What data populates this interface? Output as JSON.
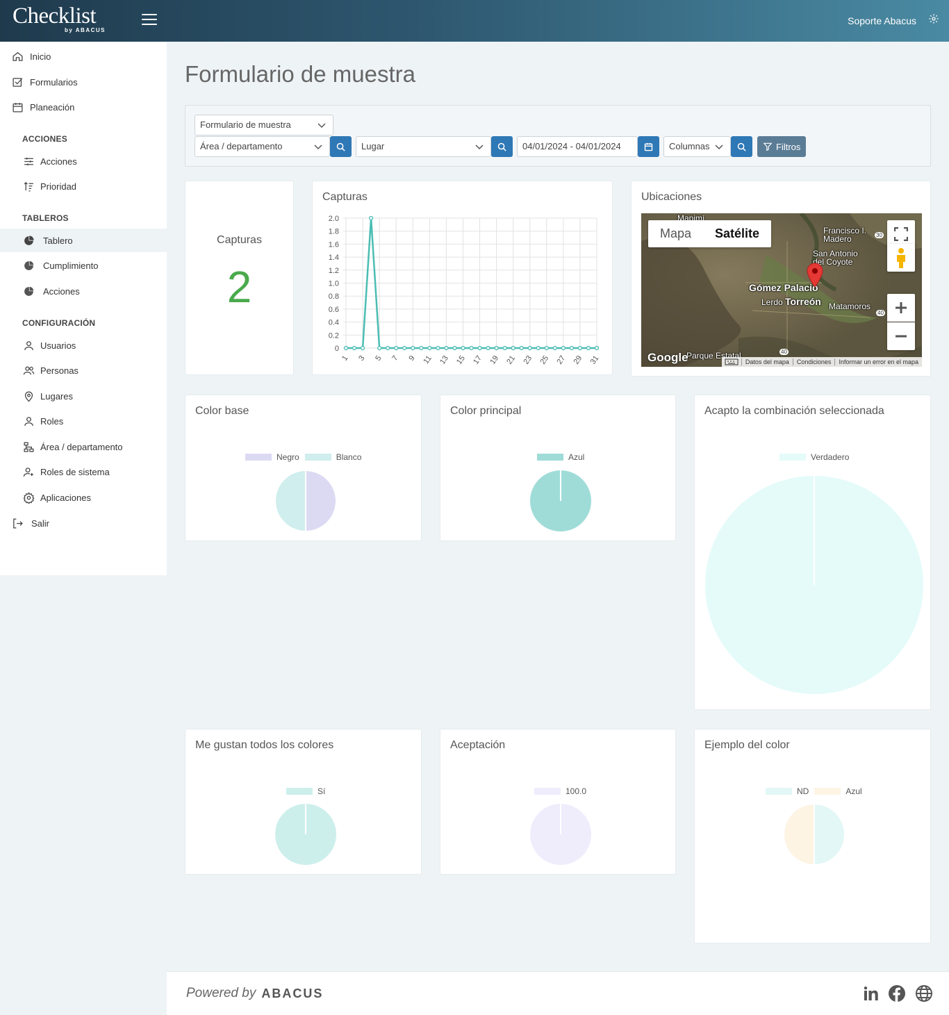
{
  "header": {
    "brand_main": "Checklist",
    "brand_sub": "by ABACUS",
    "user_name": "Soporte Abacus"
  },
  "sidebar": {
    "top_items": [
      {
        "label": "Inicio",
        "icon": "home-icon"
      },
      {
        "label": "Formularios",
        "icon": "checkbox-icon"
      },
      {
        "label": "Planeación",
        "icon": "calendar-icon"
      }
    ],
    "sections": [
      {
        "title": "ACCIONES",
        "items": [
          {
            "label": "Acciones",
            "icon": "sliders-icon"
          },
          {
            "label": "Prioridad",
            "icon": "sort-icon"
          }
        ]
      },
      {
        "title": "TABLEROS",
        "items": [
          {
            "label": "Tablero",
            "icon": "pie-chart-icon",
            "active": true
          },
          {
            "label": "Cumplimiento",
            "icon": "pie-chart-icon"
          },
          {
            "label": "Acciones",
            "icon": "pie-chart-icon"
          }
        ]
      },
      {
        "title": "CONFIGURACIÓN",
        "items": [
          {
            "label": "Usuarios",
            "icon": "user-icon"
          },
          {
            "label": "Personas",
            "icon": "users-icon"
          },
          {
            "label": "Lugares",
            "icon": "location-pin-icon"
          },
          {
            "label": "Roles",
            "icon": "user-icon"
          },
          {
            "label": "Área / departamento",
            "icon": "org-chart-icon"
          },
          {
            "label": "Roles de sistema",
            "icon": "user-plus-icon"
          },
          {
            "label": "Aplicaciones",
            "icon": "gear-icon"
          }
        ]
      }
    ],
    "logout": {
      "label": "Salir",
      "icon": "logout-icon"
    }
  },
  "page": {
    "title": "Formulario de muestra"
  },
  "filters": {
    "form_select": "Formulario de muestra",
    "area_select": "Área / departamento",
    "place_select": "Lugar",
    "date_range": "04/01/2024 - 04/01/2024",
    "columns_select": "Columnas",
    "filters_button": "Filtros"
  },
  "cards": {
    "count_label": "Capturas",
    "count_value": "2",
    "line_title": "Capturas",
    "map_title": "Ubicaciones",
    "map": {
      "tab_map": "Mapa",
      "tab_satellite": "Satélite",
      "labels": [
        "Mapimí",
        "Francisco I. Madero",
        "San Antonio del Coyote",
        "Gómez Palacio",
        "Lerdo",
        "Torreón",
        "Matamoros",
        "Parque Estatal"
      ],
      "route_numbers": [
        "30",
        "40",
        "40"
      ],
      "google": "Google",
      "footer_links": [
        "Datos del mapa",
        "Condiciones",
        "Informar un error en el mapa"
      ]
    }
  },
  "pies": [
    {
      "title": "Color base",
      "legend": [
        {
          "label": "Negro",
          "color": "#dcdaf3"
        },
        {
          "label": "Blanco",
          "color": "#cfeeed"
        }
      ],
      "values": [
        1,
        1
      ]
    },
    {
      "title": "Color principal",
      "legend": [
        {
          "label": "Azul",
          "color": "#9fdcd8"
        }
      ],
      "values": [
        2
      ]
    },
    {
      "title": "Acapto la combinación seleccionada",
      "legend": [
        {
          "label": "Verdadero",
          "color": "#e4fbf9"
        }
      ],
      "values": [
        2
      ]
    },
    {
      "title": "Me gustan todos los colores",
      "legend": [
        {
          "label": "Sí",
          "color": "#cdefec"
        }
      ],
      "values": [
        2
      ]
    },
    {
      "title": "Aceptación",
      "legend": [
        {
          "label": "100.0",
          "color": "#efedfc"
        }
      ],
      "values": [
        2
      ]
    },
    {
      "title": "Ejemplo del color",
      "legend": [
        {
          "label": "ND",
          "color": "#e2f7f6"
        },
        {
          "label": "Azul",
          "color": "#fdf4e4"
        }
      ],
      "values": [
        1,
        1
      ]
    }
  ],
  "footer": {
    "powered_by": "Powered by",
    "brand": "ABACUS"
  },
  "colors": {
    "accent": "#2f78b6",
    "count_green": "#4aaa4d",
    "line": "#4bbdb3"
  },
  "chart_data": {
    "type": "line",
    "title": "Capturas",
    "x": [
      1,
      2,
      3,
      4,
      5,
      6,
      7,
      8,
      9,
      10,
      11,
      12,
      13,
      14,
      15,
      16,
      17,
      18,
      19,
      20,
      21,
      22,
      23,
      24,
      25,
      26,
      27,
      28,
      29,
      30,
      31
    ],
    "x_tick_labels": [
      "1",
      "3",
      "5",
      "7",
      "9",
      "11",
      "13",
      "15",
      "17",
      "19",
      "21",
      "23",
      "25",
      "27",
      "29",
      "31"
    ],
    "series": [
      {
        "values": [
          0,
          0,
          0,
          2,
          0,
          0,
          0,
          0,
          0,
          0,
          0,
          0,
          0,
          0,
          0,
          0,
          0,
          0,
          0,
          0,
          0,
          0,
          0,
          0,
          0,
          0,
          0,
          0,
          0,
          0,
          0
        ]
      }
    ],
    "ylim": [
      0,
      2
    ],
    "y_ticks": [
      "0",
      "0.2",
      "0.4",
      "0.6",
      "0.8",
      "1.0",
      "1.2",
      "1.4",
      "1.6",
      "1.8",
      "2.0"
    ],
    "grid": true
  }
}
